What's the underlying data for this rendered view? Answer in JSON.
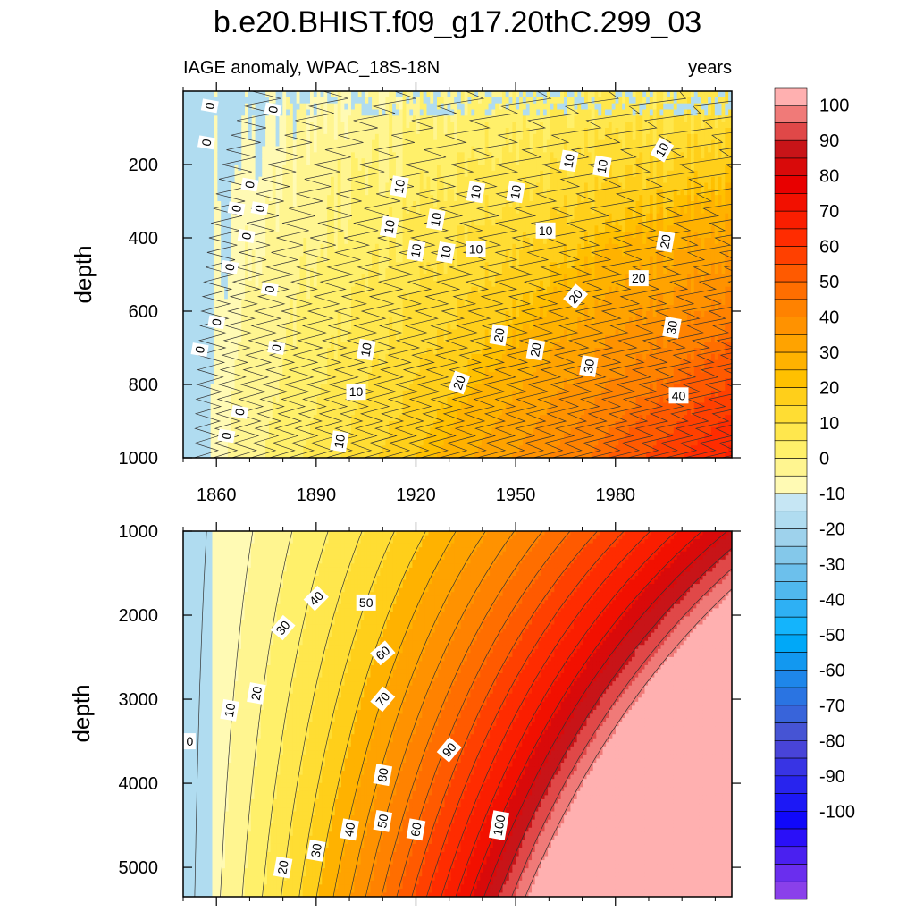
{
  "chart_data": [
    {
      "type": "heatmap",
      "title": "b.e20.BHIST.f09_g17.20thC.299_03",
      "subtitle_left": "IAGE anomaly, WPAC_18S-18N",
      "subtitle_right": "years",
      "xlabel": "",
      "ylabel": "depth",
      "xlim": [
        1850,
        2015
      ],
      "ylim": [
        1000,
        0
      ],
      "xticks": [
        1860,
        1890,
        1920,
        1950,
        1980
      ],
      "xtick_labels": [
        "1860",
        "1890",
        "1920",
        "1950",
        "1980"
      ],
      "yticks": [
        200,
        400,
        600,
        800,
        1000
      ],
      "ytick_labels": [
        "200",
        "400",
        "600",
        "800",
        "1000"
      ],
      "contour_labels": [
        {
          "text": "0",
          "x": 1858,
          "y": 40,
          "angle": -80
        },
        {
          "text": "0",
          "x": 1877,
          "y": 50,
          "angle": -80
        },
        {
          "text": "0",
          "x": 1857,
          "y": 140,
          "angle": -80
        },
        {
          "text": "0",
          "x": 1870,
          "y": 255,
          "angle": -80
        },
        {
          "text": "0",
          "x": 1866,
          "y": 320,
          "angle": -80
        },
        {
          "text": "0",
          "x": 1873,
          "y": 320,
          "angle": -80
        },
        {
          "text": "0",
          "x": 1869,
          "y": 395,
          "angle": -80
        },
        {
          "text": "0",
          "x": 1864,
          "y": 480,
          "angle": -80
        },
        {
          "text": "0",
          "x": 1876,
          "y": 540,
          "angle": -80
        },
        {
          "text": "0",
          "x": 1860,
          "y": 630,
          "angle": -80
        },
        {
          "text": "0",
          "x": 1855,
          "y": 705,
          "angle": -80
        },
        {
          "text": "0",
          "x": 1878,
          "y": 700,
          "angle": -80
        },
        {
          "text": "0",
          "x": 1867,
          "y": 875,
          "angle": -80
        },
        {
          "text": "0",
          "x": 1863,
          "y": 940,
          "angle": -80
        },
        {
          "text": "10",
          "x": 1915,
          "y": 260,
          "angle": -80
        },
        {
          "text": "10",
          "x": 1912,
          "y": 370,
          "angle": -80
        },
        {
          "text": "10",
          "x": 1920,
          "y": 435,
          "angle": -80
        },
        {
          "text": "10",
          "x": 1926,
          "y": 350,
          "angle": -80
        },
        {
          "text": "10",
          "x": 1929,
          "y": 440,
          "angle": -80
        },
        {
          "text": "10",
          "x": 1938,
          "y": 275,
          "angle": -80
        },
        {
          "text": "10",
          "x": 1938,
          "y": 430,
          "angle": 0
        },
        {
          "text": "10",
          "x": 1950,
          "y": 275,
          "angle": -80
        },
        {
          "text": "10",
          "x": 1959,
          "y": 380,
          "angle": 0
        },
        {
          "text": "10",
          "x": 1966,
          "y": 190,
          "angle": -80
        },
        {
          "text": "10",
          "x": 1976,
          "y": 205,
          "angle": -80
        },
        {
          "text": "10",
          "x": 1994,
          "y": 160,
          "angle": -60
        },
        {
          "text": "10",
          "x": 1905,
          "y": 705,
          "angle": -80
        },
        {
          "text": "10",
          "x": 1902,
          "y": 820,
          "angle": 0
        },
        {
          "text": "10",
          "x": 1897,
          "y": 955,
          "angle": -80
        },
        {
          "text": "20",
          "x": 1995,
          "y": 410,
          "angle": -80
        },
        {
          "text": "20",
          "x": 1987,
          "y": 510,
          "angle": 0
        },
        {
          "text": "20",
          "x": 1968,
          "y": 560,
          "angle": -50
        },
        {
          "text": "20",
          "x": 1945,
          "y": 665,
          "angle": -80
        },
        {
          "text": "20",
          "x": 1956,
          "y": 705,
          "angle": -80
        },
        {
          "text": "20",
          "x": 1933,
          "y": 795,
          "angle": -70
        },
        {
          "text": "30",
          "x": 1997,
          "y": 645,
          "angle": -80
        },
        {
          "text": "30",
          "x": 1972,
          "y": 750,
          "angle": -80
        },
        {
          "text": "40",
          "x": 1999,
          "y": 830,
          "angle": 0
        }
      ]
    },
    {
      "type": "heatmap",
      "xlabel": "",
      "ylabel": "depth",
      "xlim": [
        1850,
        2015
      ],
      "ylim": [
        5350,
        1000
      ],
      "xticks": [
        1860,
        1890,
        1920,
        1950,
        1980
      ],
      "yticks": [
        1000,
        2000,
        3000,
        4000,
        5000
      ],
      "ytick_labels": [
        "1000",
        "2000",
        "3000",
        "4000",
        "5000"
      ],
      "contour_labels": [
        {
          "text": "0",
          "x": 1852,
          "y": 3500,
          "angle": 0
        },
        {
          "text": "10",
          "x": 1864,
          "y": 3130,
          "angle": -80
        },
        {
          "text": "20",
          "x": 1872,
          "y": 2930,
          "angle": -80
        },
        {
          "text": "30",
          "x": 1880,
          "y": 2150,
          "angle": -50
        },
        {
          "text": "40",
          "x": 1890,
          "y": 1800,
          "angle": -45
        },
        {
          "text": "50",
          "x": 1905,
          "y": 1850,
          "angle": 0
        },
        {
          "text": "60",
          "x": 1910,
          "y": 2450,
          "angle": -40
        },
        {
          "text": "70",
          "x": 1910,
          "y": 3000,
          "angle": -50
        },
        {
          "text": "80",
          "x": 1910,
          "y": 3900,
          "angle": -80
        },
        {
          "text": "90",
          "x": 1930,
          "y": 3600,
          "angle": -50
        },
        {
          "text": "100",
          "x": 1945,
          "y": 4500,
          "angle": -80
        },
        {
          "text": "20",
          "x": 1880,
          "y": 5000,
          "angle": -80
        },
        {
          "text": "30",
          "x": 1890,
          "y": 4800,
          "angle": -80
        },
        {
          "text": "40",
          "x": 1900,
          "y": 4550,
          "angle": -80
        },
        {
          "text": "50",
          "x": 1910,
          "y": 4450,
          "angle": -80
        },
        {
          "text": "60",
          "x": 1920,
          "y": 4550,
          "angle": -80
        }
      ]
    }
  ],
  "colorbar": {
    "labels": [
      "100",
      "90",
      "80",
      "70",
      "60",
      "50",
      "40",
      "30",
      "20",
      "10",
      "0",
      "-10",
      "-20",
      "-30",
      "-40",
      "-50",
      "-60",
      "-70",
      "-80",
      "-90",
      "-100"
    ],
    "colors_top_to_bottom": [
      "#ffb0b0",
      "#f07a78",
      "#e04848",
      "#c81418",
      "#d90a0a",
      "#e80000",
      "#f21000",
      "#fa1e00",
      "#ff2c00",
      "#ff4000",
      "#ff5a00",
      "#ff6e00",
      "#ff8200",
      "#ff9200",
      "#ffa300",
      "#ffb200",
      "#ffc000",
      "#ffcf1a",
      "#ffdd33",
      "#ffe74d",
      "#fff06a",
      "#fff590",
      "#fffab4",
      "#c6e6f4",
      "#b0dcf0",
      "#9ed2ec",
      "#84c8ea",
      "#6cc0ec",
      "#50b8ee",
      "#2eb0f4",
      "#14b4fc",
      "#00a8f8",
      "#1298f0",
      "#1e86ea",
      "#2a74e2",
      "#3864da",
      "#4654d4",
      "#4844d8",
      "#3834e4",
      "#2824ee",
      "#1c18f6",
      "#1008fa",
      "#2a10f8",
      "#4a20f0",
      "#6a2eee",
      "#8a40ea"
    ]
  }
}
